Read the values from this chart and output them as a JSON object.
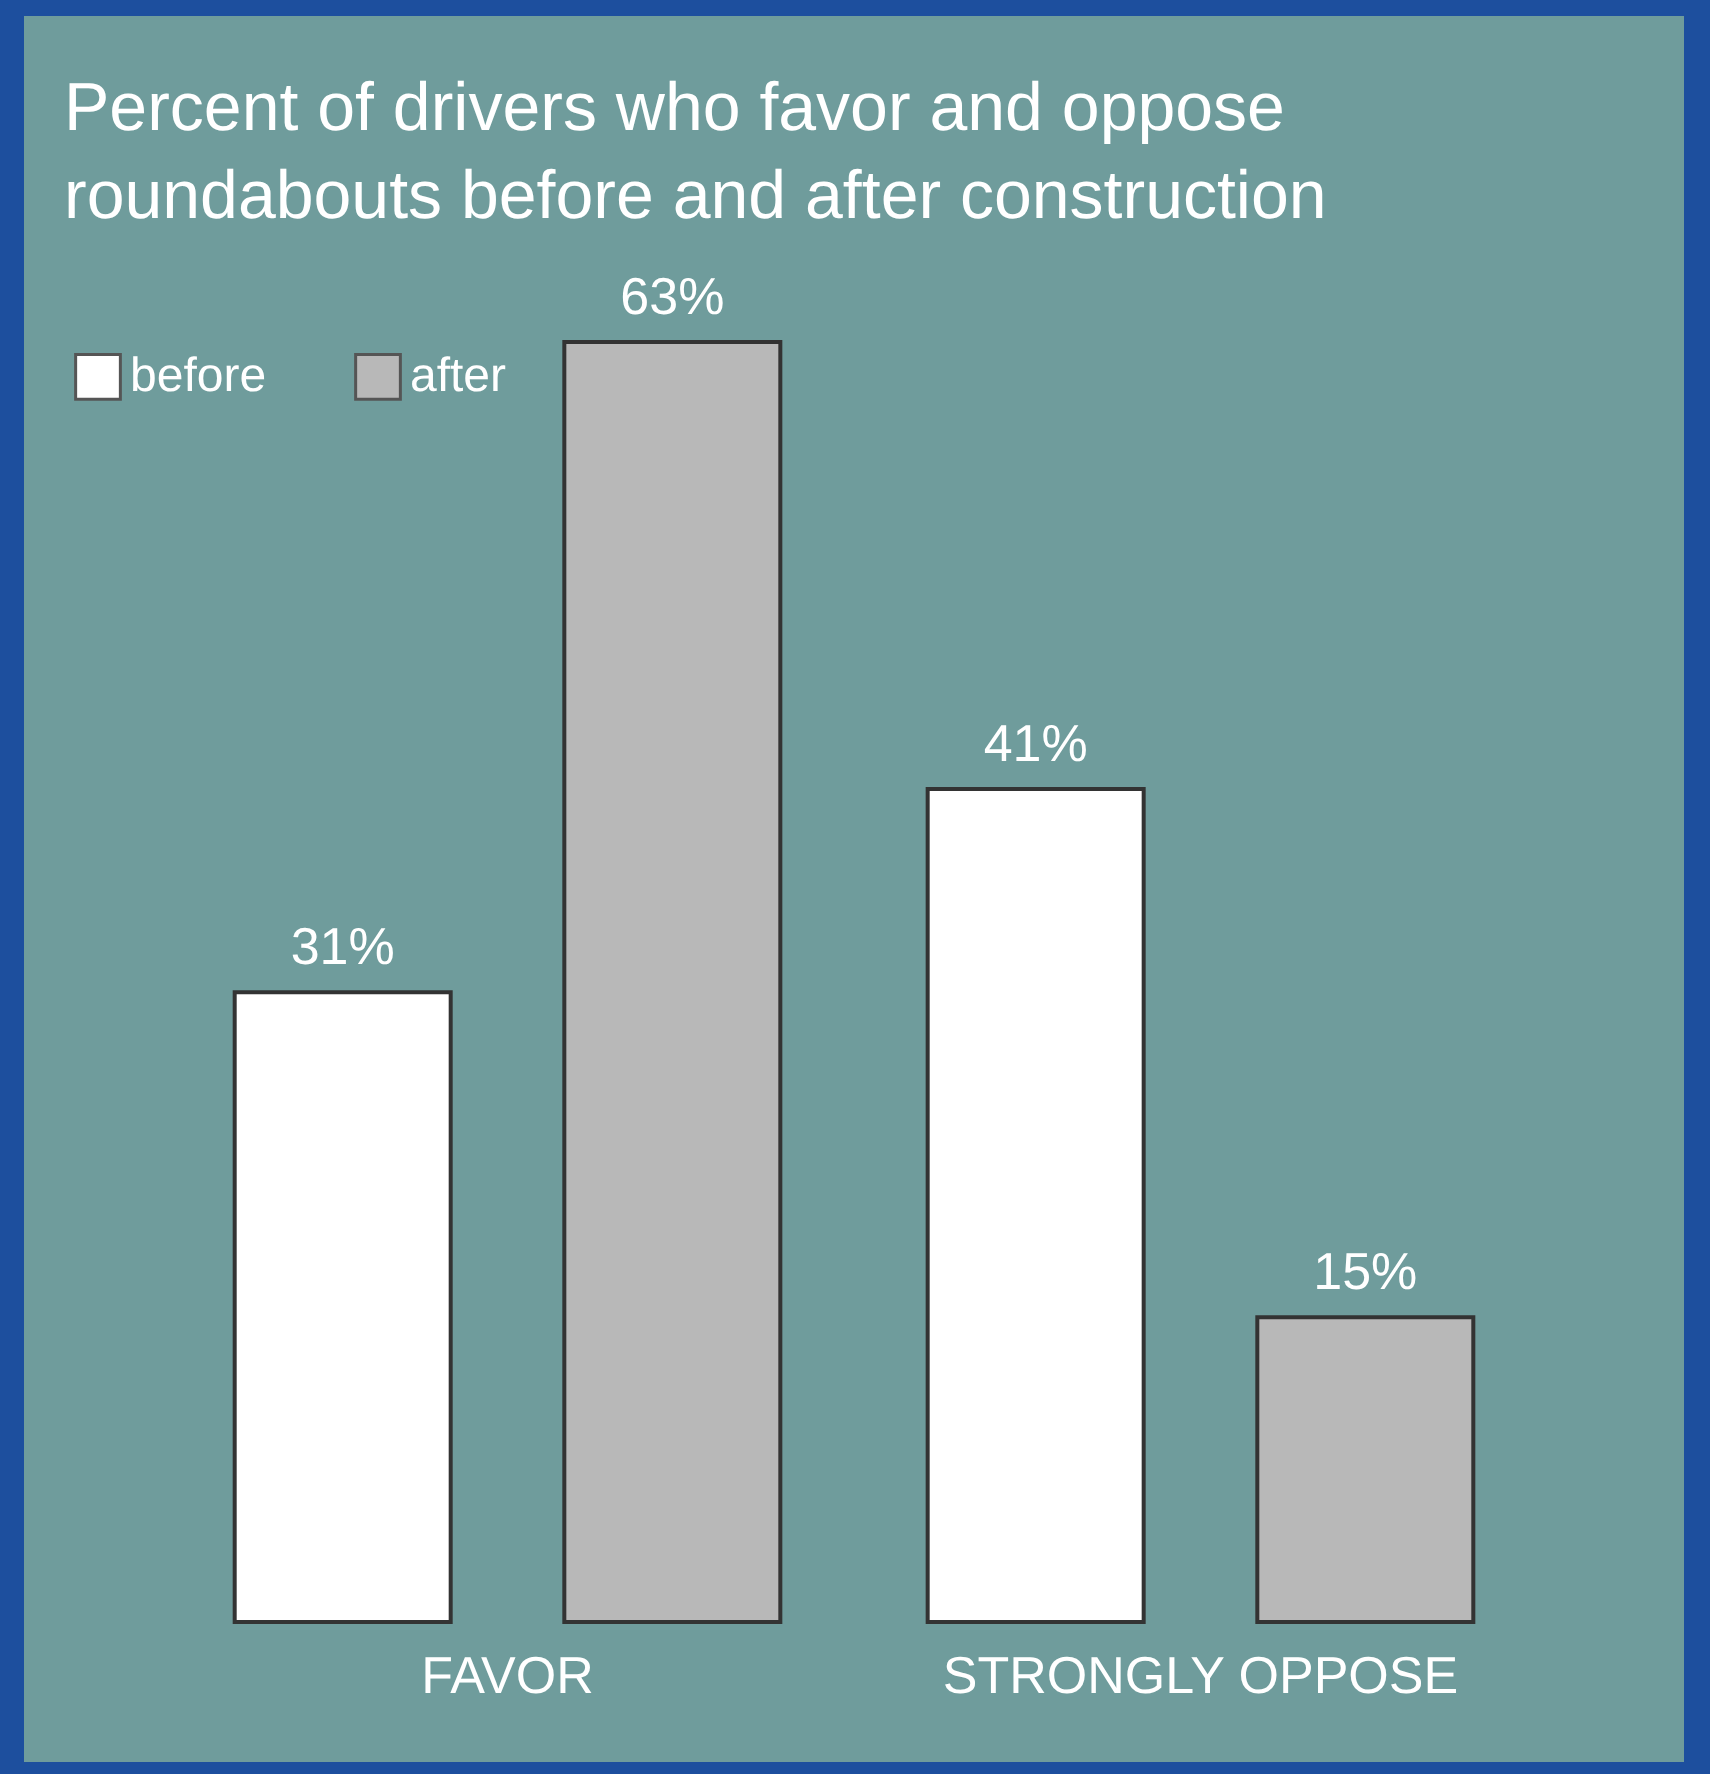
{
  "chart_data": {
    "type": "bar",
    "title": "Percent of drivers who favor and oppose roundabouts before and after construction",
    "categories": [
      "FAVOR",
      "STRONGLY OPPOSE"
    ],
    "series": [
      {
        "name": "before",
        "color": "#ffffff",
        "values": [
          31,
          41
        ],
        "value_labels": [
          "31%",
          "41%"
        ]
      },
      {
        "name": "after",
        "color": "#b8b8b8",
        "values": [
          63,
          15
        ],
        "value_labels": [
          "63%",
          "15%"
        ]
      }
    ],
    "legend": "top left",
    "grid": false
  }
}
